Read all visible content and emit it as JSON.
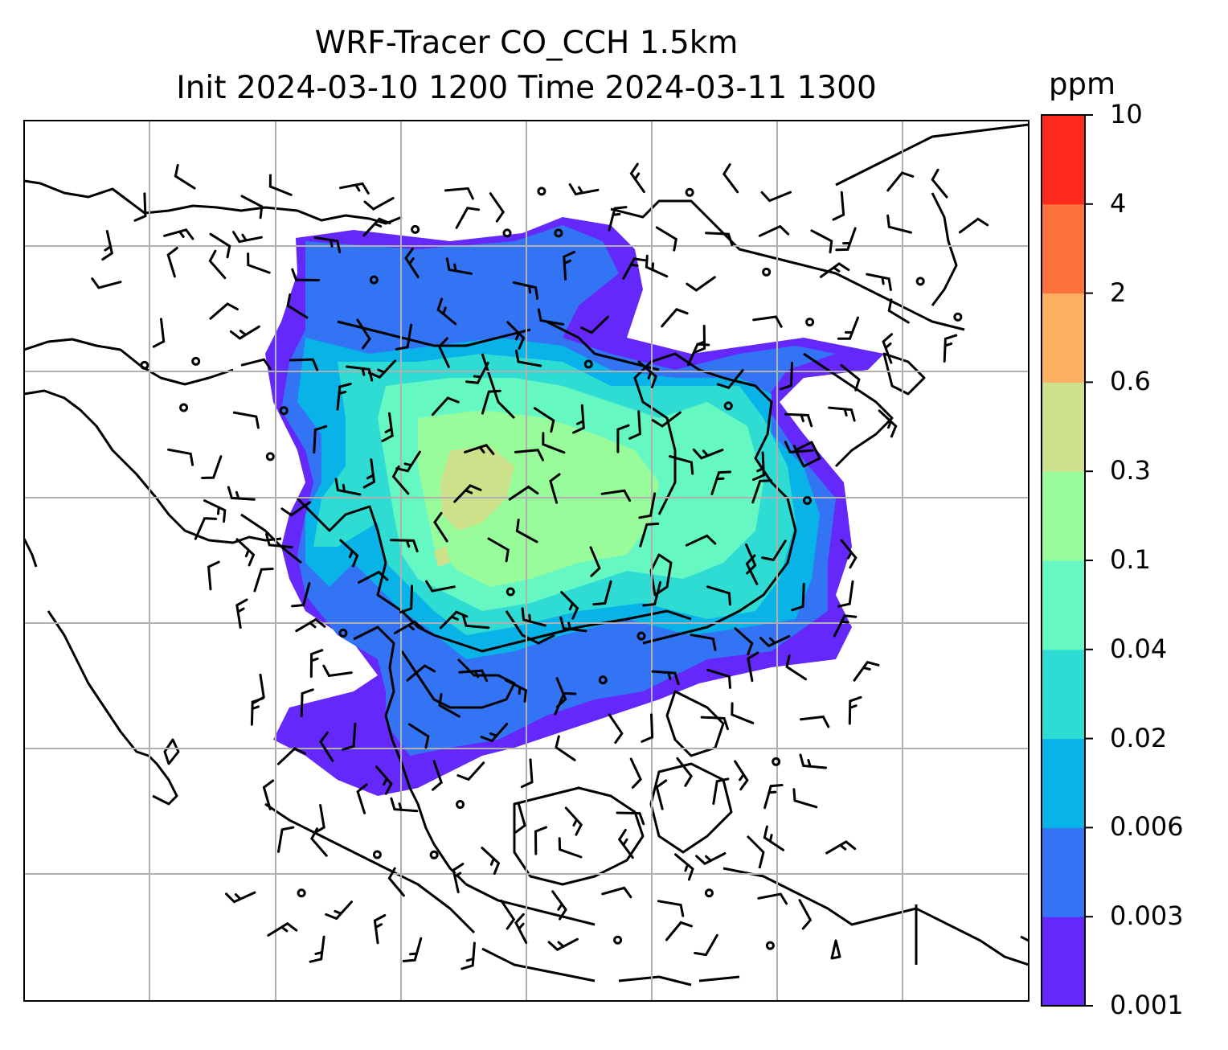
{
  "figure": {
    "title_line1": "WRF-Tracer CO_CCH 1.5km",
    "title_line2": "Init 2024-03-10 1200 Time 2024-03-11 1300",
    "colorbar_unit": "ppm",
    "colorbar_levels": [
      "0.001",
      "0.003",
      "0.006",
      "0.02",
      "0.04",
      "0.1",
      "0.3",
      "0.6",
      "2",
      "4",
      "10"
    ],
    "colorbar_colors": [
      "#6428fa",
      "#3374f4",
      "#08b3e8",
      "#2fdcd3",
      "#66f8c3",
      "#99fc9b",
      "#cde18b",
      "#fbb062",
      "#fe7240",
      "#fe2a1b"
    ]
  }
}
